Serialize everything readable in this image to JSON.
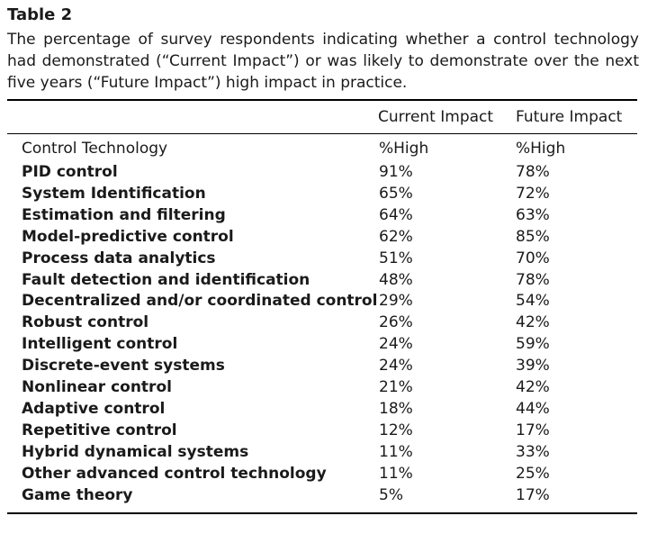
{
  "table": {
    "label": "Table 2",
    "caption": "The percentage of survey respondents indicating whether a control technology had demonstrated (“Current Impact”) or was likely to demonstrate over the next five years (“Future Impact”) high impact in practice.",
    "column_groups": {
      "current": "Current Impact",
      "future": "Future Impact"
    },
    "subheader": {
      "tech": "Control Technology",
      "current": "%High",
      "future": "%High"
    },
    "rows": [
      {
        "tech": "PID control",
        "current": "91%",
        "future": "78%"
      },
      {
        "tech": "System Identification",
        "current": "65%",
        "future": "72%"
      },
      {
        "tech": "Estimation and filtering",
        "current": "64%",
        "future": "63%"
      },
      {
        "tech": "Model-predictive control",
        "current": "62%",
        "future": "85%"
      },
      {
        "tech": "Process data analytics",
        "current": "51%",
        "future": "70%"
      },
      {
        "tech": "Fault detection and identification",
        "current": "48%",
        "future": "78%"
      },
      {
        "tech": "Decentralized and/or coordinated control",
        "current": "29%",
        "future": "54%"
      },
      {
        "tech": "Robust control",
        "current": "26%",
        "future": "42%"
      },
      {
        "tech": "Intelligent control",
        "current": "24%",
        "future": "59%"
      },
      {
        "tech": "Discrete-event systems",
        "current": "24%",
        "future": "39%"
      },
      {
        "tech": "Nonlinear control",
        "current": "21%",
        "future": "42%"
      },
      {
        "tech": "Adaptive control",
        "current": "18%",
        "future": "44%"
      },
      {
        "tech": "Repetitive control",
        "current": "12%",
        "future": "17%"
      },
      {
        "tech": "Hybrid dynamical systems",
        "current": "11%",
        "future": "33%"
      },
      {
        "tech": "Other advanced control technology",
        "current": "11%",
        "future": "25%"
      },
      {
        "tech": "Game theory",
        "current": "5%",
        "future": "17%"
      }
    ]
  }
}
